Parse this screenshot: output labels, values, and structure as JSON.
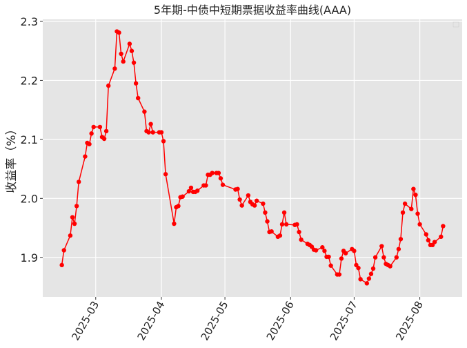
{
  "chart_data": {
    "type": "line",
    "title": "5年期-中债中短期票据收益率曲线(AAA)",
    "xlabel": "",
    "ylabel": "收益率（%）",
    "ylim": [
      1.833,
      2.3035
    ],
    "xlim": [
      "2025-02-04",
      "2025-08-21"
    ],
    "yticks": [
      1.9,
      2.0,
      2.1,
      2.2,
      2.3
    ],
    "ytick_labels": [
      "1.9",
      "2.0",
      "2.1",
      "2.2",
      "2.3"
    ],
    "xticks": [
      "2025-03-01",
      "2025-04-01",
      "2025-05-01",
      "2025-06-01",
      "2025-07-01",
      "2025-08-01"
    ],
    "xtick_labels": [
      "2025-03",
      "2025-04",
      "2025-05",
      "2025-06",
      "2025-07",
      "2025-08"
    ],
    "grid": true,
    "legend": "top-right",
    "colors": {
      "line": "#ff0000",
      "plot_bg": "#e5e5e5",
      "grid": "#ffffff"
    },
    "series": [
      {
        "x": [
          "2025-02-13",
          "2025-02-14",
          "2025-02-17",
          "2025-02-18",
          "2025-02-19",
          "2025-02-20",
          "2025-02-21",
          "2025-02-24",
          "2025-02-25",
          "2025-02-26",
          "2025-02-27",
          "2025-02-28",
          "2025-03-03",
          "2025-03-04",
          "2025-03-05",
          "2025-03-06",
          "2025-03-07",
          "2025-03-10",
          "2025-03-11",
          "2025-03-12",
          "2025-03-13",
          "2025-03-14",
          "2025-03-17",
          "2025-03-18",
          "2025-03-19",
          "2025-03-20",
          "2025-03-21",
          "2025-03-24",
          "2025-03-25",
          "2025-03-26",
          "2025-03-27",
          "2025-03-28",
          "2025-03-31",
          "2025-04-01",
          "2025-04-02",
          "2025-04-03",
          "2025-04-07",
          "2025-04-08",
          "2025-04-09",
          "2025-04-10",
          "2025-04-11",
          "2025-04-14",
          "2025-04-15",
          "2025-04-16",
          "2025-04-17",
          "2025-04-18",
          "2025-04-21",
          "2025-04-22",
          "2025-04-23",
          "2025-04-24",
          "2025-04-25",
          "2025-04-27",
          "2025-04-28",
          "2025-04-29",
          "2025-04-30",
          "2025-05-06",
          "2025-05-07",
          "2025-05-08",
          "2025-05-09",
          "2025-05-12",
          "2025-05-13",
          "2025-05-14",
          "2025-05-15",
          "2025-05-16",
          "2025-05-19",
          "2025-05-20",
          "2025-05-21",
          "2025-05-22",
          "2025-05-23",
          "2025-05-26",
          "2025-05-27",
          "2025-05-28",
          "2025-05-29",
          "2025-05-30",
          "2025-06-03",
          "2025-06-04",
          "2025-06-05",
          "2025-06-06",
          "2025-06-09",
          "2025-06-10",
          "2025-06-11",
          "2025-06-12",
          "2025-06-13",
          "2025-06-16",
          "2025-06-17",
          "2025-06-18",
          "2025-06-19",
          "2025-06-20",
          "2025-06-23",
          "2025-06-24",
          "2025-06-25",
          "2025-06-26",
          "2025-06-27",
          "2025-06-30",
          "2025-07-01",
          "2025-07-02",
          "2025-07-03",
          "2025-07-04",
          "2025-07-07",
          "2025-07-08",
          "2025-07-09",
          "2025-07-10",
          "2025-07-11",
          "2025-07-14",
          "2025-07-15",
          "2025-07-16",
          "2025-07-17",
          "2025-07-18",
          "2025-07-21",
          "2025-07-22",
          "2025-07-23",
          "2025-07-24",
          "2025-07-25",
          "2025-07-28",
          "2025-07-29",
          "2025-07-30",
          "2025-07-31",
          "2025-08-01",
          "2025-08-04",
          "2025-08-05",
          "2025-08-06",
          "2025-08-07",
          "2025-08-08",
          "2025-08-11",
          "2025-08-12"
        ],
        "y": [
          1.887,
          1.912,
          1.937,
          1.968,
          1.957,
          1.987,
          2.028,
          2.071,
          2.094,
          2.092,
          2.11,
          2.121,
          2.121,
          2.104,
          2.101,
          2.114,
          2.191,
          2.22,
          2.283,
          2.281,
          2.245,
          2.232,
          2.262,
          2.25,
          2.23,
          2.195,
          2.17,
          2.147,
          2.114,
          2.112,
          2.126,
          2.112,
          2.112,
          2.112,
          2.097,
          2.041,
          1.957,
          1.985,
          1.987,
          2.002,
          2.003,
          2.012,
          2.018,
          2.011,
          2.011,
          2.013,
          2.022,
          2.022,
          2.04,
          2.04,
          2.043,
          2.043,
          2.043,
          2.034,
          2.023,
          2.015,
          2.016,
          1.998,
          1.988,
          2.005,
          1.994,
          1.99,
          1.988,
          1.996,
          1.991,
          1.976,
          1.961,
          1.943,
          1.944,
          1.935,
          1.937,
          1.956,
          1.976,
          1.956,
          1.955,
          1.956,
          1.943,
          1.93,
          1.923,
          1.921,
          1.918,
          1.913,
          1.912,
          1.917,
          1.911,
          1.901,
          1.901,
          1.886,
          1.871,
          1.871,
          1.898,
          1.911,
          1.907,
          1.914,
          1.911,
          1.887,
          1.882,
          1.863,
          1.856,
          1.864,
          1.872,
          1.881,
          1.9,
          1.919,
          1.9,
          1.889,
          1.887,
          1.885,
          1.9,
          1.914,
          1.931,
          1.976,
          1.991,
          1.982,
          2.016,
          2.006,
          1.974,
          1.956,
          1.939,
          1.929,
          1.921,
          1.921,
          1.926,
          1.935,
          1.953
        ]
      }
    ]
  }
}
